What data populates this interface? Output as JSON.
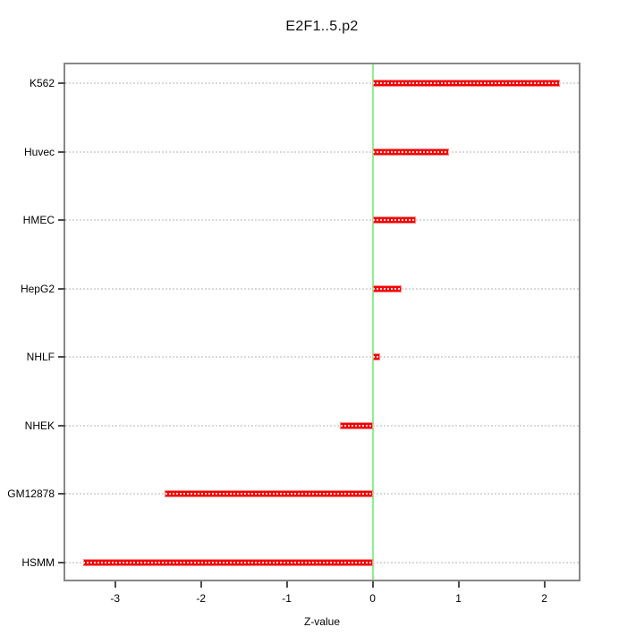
{
  "figure": {
    "title": "E2F1..5.p2",
    "x_axis_title": "Z-value"
  },
  "colors": {
    "bar_fill": "#f40000",
    "bar_border": "#ff8585",
    "zero_line": "#90ee90",
    "grid_line": "#d9d9d9",
    "box_border": "#878787",
    "tick": "#4d4d4d",
    "text": "#000000"
  },
  "chart_data": {
    "type": "bar",
    "orientation": "horizontal",
    "title": "E2F1..5.p2",
    "xlabel": "Z-value",
    "ylabel": "",
    "categories": [
      "K562",
      "Huvec",
      "HMEC",
      "HepG2",
      "NHLF",
      "NHEK",
      "GM12878",
      "HSMM"
    ],
    "values": [
      2.18,
      0.89,
      0.5,
      0.34,
      0.09,
      -0.38,
      -2.42,
      -3.37
    ],
    "x_ticks": [
      -3,
      -2,
      -1,
      0,
      1,
      2
    ],
    "xlim": [
      -3.58,
      2.4
    ],
    "grid": "horizontal-dotted",
    "zero_line_at": 0,
    "legend": "none"
  }
}
